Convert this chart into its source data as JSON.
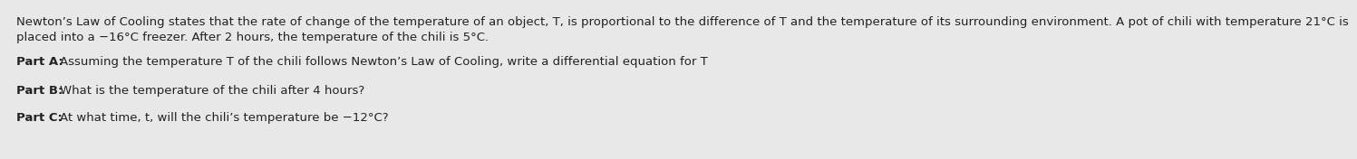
{
  "background_color": "#e8e8e8",
  "text_color": "#222222",
  "font_size": 9.5,
  "line1": "Newton’s Law of Cooling states that the rate of change of the temperature of an object, T, is proportional to the difference of T and the temperature of its surrounding environment. A pot of chili with temperature 21°C is",
  "line2": "placed into a −16°C freezer. After 2 hours, the temperature of the chili is 5°C.",
  "partA_label": "Part A: ",
  "partA_text": "Assuming the temperature T of the chili follows Newton’s Law of Cooling, write a differential equation for T",
  "partB_label": "Part B: ",
  "partB_text": "What is the temperature of the chili after 4 hours?",
  "partC_label": "Part C: ",
  "partC_text": "At what time, t, will the chili’s temperature be −12°C?"
}
